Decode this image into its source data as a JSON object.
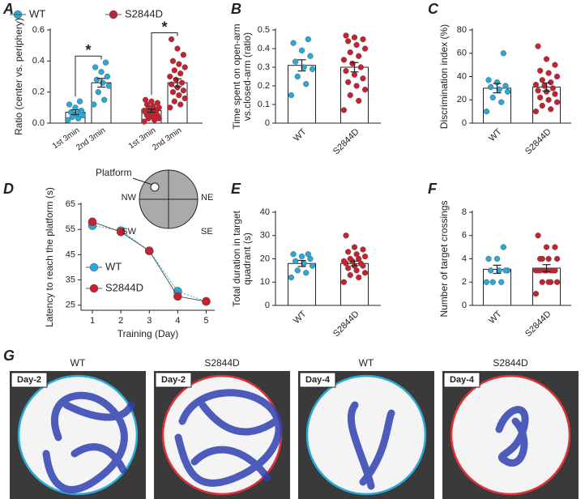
{
  "chart_data": [
    {
      "type": "grouped_bar_dot",
      "panel": "A",
      "ylabel": [
        "Ratio (center vs. periphery)"
      ],
      "categories": [
        "1st 3min",
        "2nd 3min"
      ],
      "series": [
        {
          "name": "WT",
          "color": "#29a9d8",
          "values": [
            0.07,
            0.26
          ],
          "errors": [
            0.015,
            0.028
          ],
          "points": [
            [
              0.02,
              0.03,
              0.04,
              0.05,
              0.06,
              0.07,
              0.08,
              0.1,
              0.12,
              0.14
            ],
            [
              0.12,
              0.15,
              0.2,
              0.24,
              0.26,
              0.28,
              0.3,
              0.33,
              0.36,
              0.39
            ]
          ]
        },
        {
          "name": "S2844D",
          "color": "#c8202f",
          "values": [
            0.08,
            0.26
          ],
          "errors": [
            0.01,
            0.025
          ],
          "points": [
            [
              0.01,
              0.02,
              0.03,
              0.03,
              0.04,
              0.05,
              0.05,
              0.06,
              0.07,
              0.07,
              0.08,
              0.08,
              0.09,
              0.1,
              0.1,
              0.11,
              0.12,
              0.13,
              0.14,
              0.15
            ],
            [
              0.1,
              0.12,
              0.14,
              0.16,
              0.18,
              0.2,
              0.21,
              0.23,
              0.25,
              0.26,
              0.28,
              0.3,
              0.32,
              0.34,
              0.36,
              0.38,
              0.4,
              0.44,
              0.48,
              0.54
            ]
          ]
        }
      ],
      "annotations": [
        "*",
        "*"
      ],
      "ylim": [
        0,
        0.6
      ],
      "yticks": [
        {
          "value": 0,
          "label": "0.0"
        },
        0.2,
        0.4,
        0.6
      ]
    },
    {
      "type": "bar_dot",
      "panel": "B",
      "ylabel": [
        "Time spent on open-arm",
        "vs.closed-arm (ratio)"
      ],
      "categories": [
        "WT",
        "S2844D"
      ],
      "colors": [
        "#29a9d8",
        "#c8202f"
      ],
      "values": [
        0.31,
        0.3
      ],
      "errors": [
        0.03,
        0.025
      ],
      "points": [
        [
          0.15,
          0.21,
          0.25,
          0.29,
          0.3,
          0.33,
          0.36,
          0.39,
          0.43,
          0.45
        ],
        [
          0.07,
          0.12,
          0.15,
          0.18,
          0.2,
          0.22,
          0.24,
          0.26,
          0.28,
          0.3,
          0.32,
          0.34,
          0.36,
          0.38,
          0.4,
          0.42,
          0.44,
          0.45,
          0.46,
          0.47
        ]
      ],
      "ylim": [
        0,
        0.5
      ],
      "yticks": [
        0,
        0.1,
        0.2,
        0.3,
        0.4,
        0.5
      ]
    },
    {
      "type": "bar_dot",
      "panel": "C",
      "ylabel": [
        "Discrimination index (%)"
      ],
      "categories": [
        "WT",
        "S2844D"
      ],
      "colors": [
        "#29a9d8",
        "#c8202f"
      ],
      "values": [
        30,
        31
      ],
      "errors": [
        4,
        3.5
      ],
      "points": [
        [
          10,
          18,
          22,
          27,
          29,
          31,
          32,
          35,
          37,
          60
        ],
        [
          10,
          12,
          15,
          18,
          20,
          22,
          25,
          27,
          28,
          30,
          32,
          33,
          35,
          37,
          40,
          43,
          45,
          50,
          55,
          66
        ]
      ],
      "ylim": [
        0,
        80
      ],
      "yticks": [
        0,
        20,
        40,
        60,
        80
      ]
    },
    {
      "type": "line",
      "panel": "D",
      "ylabel": [
        "Latency to reach the platform (s)"
      ],
      "xlabel": "Training (Day)",
      "x": [
        1,
        2,
        3,
        4,
        5
      ],
      "series": [
        {
          "name": "WT",
          "color": "#29a9d8",
          "values": [
            56.5,
            54.5,
            46.5,
            30.5,
            26.5
          ]
        },
        {
          "name": "S2844D",
          "color": "#c8202f",
          "values": [
            58,
            54,
            46.5,
            28.5,
            26.5
          ]
        }
      ],
      "inset": {
        "label": "Platform",
        "quadrants": [
          "NW",
          "NE",
          "SW",
          "SE"
        ]
      },
      "xlim": [
        0.6,
        5.3
      ],
      "xticks": [
        1,
        2,
        3,
        4,
        5
      ],
      "ylim": [
        23,
        65
      ],
      "yticks": [
        25,
        35,
        45,
        55,
        65
      ]
    },
    {
      "type": "bar_dot",
      "panel": "E",
      "ylabel": [
        "Total duration in target",
        "quadrant (s)"
      ],
      "categories": [
        "WT",
        "S2844D"
      ],
      "colors": [
        "#29a9d8",
        "#c8202f"
      ],
      "values": [
        18,
        18
      ],
      "errors": [
        1.3,
        1
      ],
      "points": [
        [
          12,
          14,
          15,
          17,
          18,
          19,
          20,
          21,
          22,
          22
        ],
        [
          10,
          12,
          13,
          14,
          15,
          16,
          17,
          17,
          18,
          18,
          19,
          19,
          20,
          20,
          21,
          22,
          23,
          24,
          25,
          30
        ]
      ],
      "ylim": [
        0,
        40
      ],
      "yticks": [
        0,
        10,
        20,
        30,
        40
      ]
    },
    {
      "type": "bar_dot",
      "panel": "F",
      "ylabel": [
        "Number of target crossings"
      ],
      "categories": [
        "WT",
        "S2844D"
      ],
      "colors": [
        "#29a9d8",
        "#c8202f"
      ],
      "values": [
        3.1,
        3.2
      ],
      "errors": [
        0.35,
        0.3
      ],
      "points": [
        [
          2,
          2,
          2,
          3,
          3,
          3,
          3,
          4,
          4,
          5
        ],
        [
          1,
          2,
          2,
          2,
          2,
          3,
          3,
          3,
          3,
          3,
          3,
          3,
          3,
          4,
          4,
          4,
          4,
          5,
          5,
          6
        ]
      ],
      "ylim": [
        0,
        8
      ],
      "yticks": [
        0,
        2,
        4,
        6,
        8
      ]
    }
  ],
  "panel_g": {
    "panel": "G",
    "images": [
      {
        "title": "WT",
        "day": "Day-2",
        "ring_color": "#29a9d8"
      },
      {
        "title": "S2844D",
        "day": "Day-2",
        "ring_color": "#e0303a"
      },
      {
        "title": "WT",
        "day": "Day-4",
        "ring_color": "#29a9d8"
      },
      {
        "title": "S2844D",
        "day": "Day-4",
        "ring_color": "#e0303a"
      }
    ]
  }
}
